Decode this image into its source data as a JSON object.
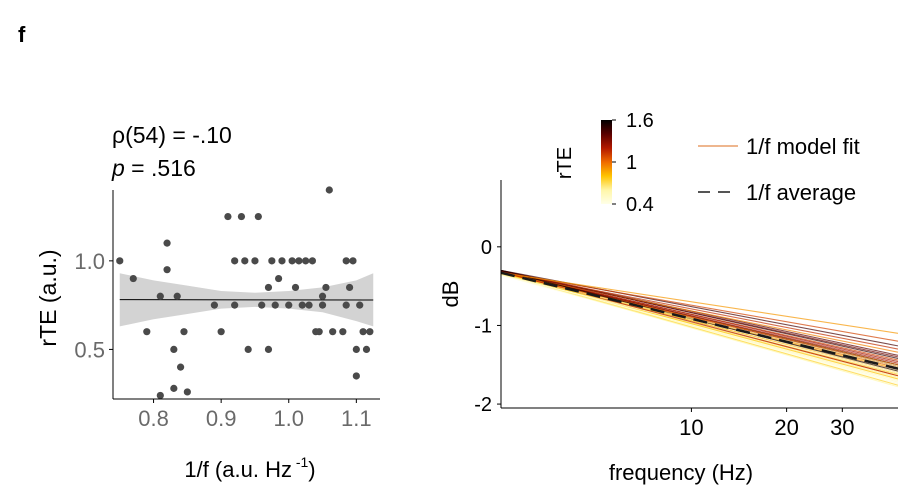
{
  "panel_label": "f",
  "chart_data": [
    {
      "type": "scatter",
      "stat_line1": "ρ(54) = -.10",
      "stat_line2_var": "p",
      "stat_line2_rest": " = .516",
      "xlabel_main": "1/f (a.u. Hz",
      "xlabel_sup": " -1",
      "xlabel_close": ")",
      "ylabel": "rTE (a.u.)",
      "xlim": [
        0.74,
        1.135
      ],
      "ylim": [
        0.22,
        1.4
      ],
      "xticks": [
        0.8,
        0.9,
        1.0,
        1.1
      ],
      "xtick_labels": [
        "0.8",
        "0.9",
        "1.0",
        "1.1"
      ],
      "yticks": [
        0.5,
        1.0
      ],
      "ytick_labels": [
        "0.5",
        "1.0"
      ],
      "fit": {
        "x": [
          0.75,
          1.125
        ],
        "y": [
          0.781,
          0.779
        ]
      },
      "ci_band": {
        "x": [
          0.75,
          0.8,
          0.85,
          0.9,
          0.95,
          1.0,
          1.05,
          1.1,
          1.125
        ],
        "lower": [
          0.63,
          0.67,
          0.7,
          0.73,
          0.74,
          0.73,
          0.71,
          0.66,
          0.63
        ],
        "upper": [
          0.93,
          0.89,
          0.86,
          0.83,
          0.82,
          0.83,
          0.85,
          0.89,
          0.93
        ]
      },
      "points": [
        {
          "x": 0.75,
          "y": 1.0
        },
        {
          "x": 0.77,
          "y": 0.9
        },
        {
          "x": 0.79,
          "y": 0.6
        },
        {
          "x": 0.81,
          "y": 0.8
        },
        {
          "x": 0.81,
          "y": 0.24
        },
        {
          "x": 0.82,
          "y": 1.1
        },
        {
          "x": 0.82,
          "y": 0.95
        },
        {
          "x": 0.83,
          "y": 0.5
        },
        {
          "x": 0.83,
          "y": 0.28
        },
        {
          "x": 0.835,
          "y": 0.8
        },
        {
          "x": 0.84,
          "y": 0.4
        },
        {
          "x": 0.845,
          "y": 0.6
        },
        {
          "x": 0.85,
          "y": 0.26
        },
        {
          "x": 0.89,
          "y": 0.75
        },
        {
          "x": 0.9,
          "y": 0.6
        },
        {
          "x": 0.91,
          "y": 1.25
        },
        {
          "x": 0.92,
          "y": 0.75
        },
        {
          "x": 0.93,
          "y": 1.25
        },
        {
          "x": 0.935,
          "y": 1.0
        },
        {
          "x": 0.94,
          "y": 0.5
        },
        {
          "x": 0.95,
          "y": 1.0
        },
        {
          "x": 0.955,
          "y": 1.25
        },
        {
          "x": 0.96,
          "y": 0.75
        },
        {
          "x": 0.97,
          "y": 0.5
        },
        {
          "x": 0.97,
          "y": 0.85
        },
        {
          "x": 0.98,
          "y": 0.75
        },
        {
          "x": 0.985,
          "y": 0.9
        },
        {
          "x": 0.99,
          "y": 1.0
        },
        {
          "x": 1.0,
          "y": 0.75
        },
        {
          "x": 1.005,
          "y": 1.0
        },
        {
          "x": 1.01,
          "y": 0.85
        },
        {
          "x": 1.015,
          "y": 1.0
        },
        {
          "x": 1.02,
          "y": 0.75
        },
        {
          "x": 1.025,
          "y": 1.0
        },
        {
          "x": 1.03,
          "y": 0.75
        },
        {
          "x": 1.035,
          "y": 1.0
        },
        {
          "x": 1.04,
          "y": 0.6
        },
        {
          "x": 1.045,
          "y": 0.6
        },
        {
          "x": 1.05,
          "y": 0.75
        },
        {
          "x": 1.055,
          "y": 0.85
        },
        {
          "x": 1.06,
          "y": 1.4
        },
        {
          "x": 1.065,
          "y": 0.6
        },
        {
          "x": 1.08,
          "y": 0.6
        },
        {
          "x": 1.085,
          "y": 0.75
        },
        {
          "x": 1.09,
          "y": 0.85
        },
        {
          "x": 1.095,
          "y": 1.0
        },
        {
          "x": 1.1,
          "y": 0.5
        },
        {
          "x": 1.1,
          "y": 0.35
        },
        {
          "x": 1.105,
          "y": 0.75
        },
        {
          "x": 1.11,
          "y": 0.6
        },
        {
          "x": 1.115,
          "y": 0.5
        },
        {
          "x": 1.12,
          "y": 0.6
        },
        {
          "x": 1.085,
          "y": 1.0
        },
        {
          "x": 0.92,
          "y": 1.0
        },
        {
          "x": 0.975,
          "y": 1.0
        },
        {
          "x": 1.05,
          "y": 0.8
        }
      ],
      "grid": false
    },
    {
      "type": "line",
      "xlabel": "frequency (Hz)",
      "ylabel": "dB",
      "x_scale": "log",
      "xlim": [
        2.5,
        45
      ],
      "ylim": [
        -2.05,
        0.85
      ],
      "xticks": [
        10,
        20,
        30
      ],
      "xtick_labels": [
        "10",
        "20",
        "30"
      ],
      "yticks": [
        0,
        -1,
        -2
      ],
      "ytick_labels": [
        "0",
        "-1",
        "-2"
      ],
      "colorbar": {
        "label": "rTE",
        "ticks": [
          1.6,
          1,
          0.4
        ],
        "tick_labels": [
          "1.6",
          "1",
          "0.4"
        ],
        "range": [
          0.4,
          1.6
        ],
        "colors": [
          "#000000",
          "#5a0000",
          "#b21800",
          "#ef6a00",
          "#ffc400",
          "#fff6a8",
          "#ffffe8"
        ]
      },
      "legend": [
        {
          "label": "1/f model fit",
          "color": "#e48a4a",
          "style": "solid"
        },
        {
          "label": "1/f average",
          "color": "#555555",
          "style": "dashed"
        }
      ],
      "legend_position": "top-right",
      "average": {
        "x": [
          2.5,
          45
        ],
        "y": [
          -0.33,
          -1.55
        ]
      },
      "fits": [
        {
          "rte": 1.6,
          "y0": -0.31,
          "y1": -1.5
        },
        {
          "rte": 0.5,
          "y0": -0.35,
          "y1": -1.72
        },
        {
          "rte": 1.0,
          "y0": -0.33,
          "y1": -1.56
        },
        {
          "rte": 0.8,
          "y0": -0.34,
          "y1": -1.62
        },
        {
          "rte": 1.2,
          "y0": -0.32,
          "y1": -1.48
        },
        {
          "rte": 0.4,
          "y0": -0.36,
          "y1": -1.68
        },
        {
          "rte": 1.4,
          "y0": -0.3,
          "y1": -1.38
        },
        {
          "rte": 0.9,
          "y0": -0.33,
          "y1": -1.64
        },
        {
          "rte": 1.1,
          "y0": -0.32,
          "y1": -1.44
        },
        {
          "rte": 0.6,
          "y0": -0.35,
          "y1": -1.58
        },
        {
          "rte": 1.3,
          "y0": -0.31,
          "y1": -1.52
        },
        {
          "rte": 0.7,
          "y0": -0.34,
          "y1": -1.66
        },
        {
          "rte": 1.5,
          "y0": -0.3,
          "y1": -1.42
        },
        {
          "rte": 0.45,
          "y0": -0.36,
          "y1": -1.74
        },
        {
          "rte": 1.05,
          "y0": -0.32,
          "y1": -1.54
        },
        {
          "rte": 0.85,
          "y0": -0.33,
          "y1": -1.6
        },
        {
          "rte": 1.25,
          "y0": -0.31,
          "y1": -1.46
        },
        {
          "rte": 0.55,
          "y0": -0.35,
          "y1": -1.7
        },
        {
          "rte": 0.95,
          "y0": -0.33,
          "y1": -1.34
        },
        {
          "rte": 0.75,
          "y0": -0.34,
          "y1": -1.76
        },
        {
          "rte": 1.15,
          "y0": -0.32,
          "y1": -1.3
        },
        {
          "rte": 0.65,
          "y0": -0.35,
          "y1": -1.62
        },
        {
          "rte": 1.35,
          "y0": -0.31,
          "y1": -1.4
        },
        {
          "rte": 0.5,
          "y0": -0.35,
          "y1": -1.66
        },
        {
          "rte": 1.0,
          "y0": -0.33,
          "y1": -1.5
        },
        {
          "rte": 0.6,
          "y0": -0.34,
          "y1": -1.78
        },
        {
          "rte": 1.45,
          "y0": -0.3,
          "y1": -1.26
        },
        {
          "rte": 0.7,
          "y0": -0.34,
          "y1": -1.55
        },
        {
          "rte": 0.8,
          "y0": -0.33,
          "y1": -1.68
        },
        {
          "rte": 1.55,
          "y0": -0.3,
          "y1": -1.58
        },
        {
          "rte": 0.42,
          "y0": -0.36,
          "y1": -1.6
        },
        {
          "rte": 1.1,
          "y0": -0.32,
          "y1": -1.2
        },
        {
          "rte": 0.9,
          "y0": -0.33,
          "y1": -1.1
        },
        {
          "rte": 1.2,
          "y0": -0.32,
          "y1": -1.64
        },
        {
          "rte": 0.65,
          "y0": -0.35,
          "y1": -1.52
        }
      ],
      "grid": false
    }
  ]
}
